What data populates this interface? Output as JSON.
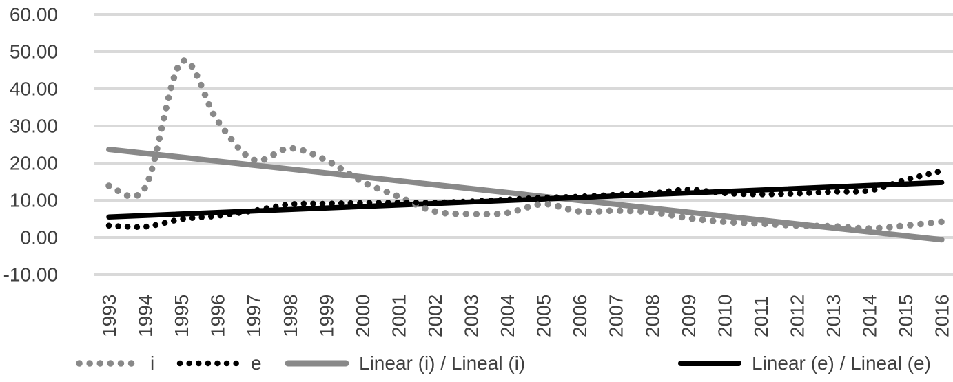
{
  "chart_data": {
    "type": "line",
    "title": "",
    "xlabel": "",
    "ylabel": "",
    "grid": true,
    "gridline_color": "#d9d9d9",
    "axis_text_color": "#404040",
    "y_axis": {
      "min": -10,
      "max": 60,
      "tick_step": 10,
      "tick_labels": [
        "60.00",
        "50.00",
        "40.00",
        "30.00",
        "20.00",
        "10.00",
        "0.00",
        "-10.00"
      ],
      "tick_values": [
        60,
        50,
        40,
        30,
        20,
        10,
        0,
        -10
      ]
    },
    "x": [
      1993,
      1994,
      1995,
      1996,
      1997,
      1998,
      1999,
      2000,
      2001,
      2002,
      2003,
      2004,
      2005,
      2006,
      2007,
      2008,
      2009,
      2010,
      2011,
      2012,
      2013,
      2014,
      2015,
      2016
    ],
    "x_tick_labels": [
      "1993",
      "1994",
      "1995",
      "1996",
      "1997",
      "1998",
      "1999",
      "2000",
      "2001",
      "2002",
      "2003",
      "2004",
      "2005",
      "2006",
      "2007",
      "2008",
      "2009",
      "2010",
      "2011",
      "2012",
      "2013",
      "2014",
      "2015",
      "2016"
    ],
    "series": [
      {
        "name": "i",
        "style": "dotted",
        "color": "#898989",
        "values": [
          13.9,
          13.4,
          47.2,
          31.4,
          20.9,
          24.0,
          20.8,
          15.0,
          11.0,
          7.0,
          6.3,
          6.6,
          9.0,
          7.0,
          7.2,
          6.8,
          5.2,
          4.2,
          3.7,
          3.2,
          3.0,
          2.4,
          3.2,
          4.2
        ]
      },
      {
        "name": "e",
        "style": "dotted",
        "color": "#000000",
        "values": [
          3.2,
          2.9,
          4.9,
          5.8,
          7.2,
          8.9,
          9.1,
          9.3,
          9.4,
          9.4,
          9.7,
          10.2,
          10.7,
          11.0,
          11.5,
          11.9,
          12.9,
          11.9,
          11.6,
          11.8,
          12.3,
          12.6,
          15.5,
          17.9
        ]
      },
      {
        "name": "Linear (i) / Lineal (i)",
        "style": "trendline",
        "color": "#898989",
        "trend_start": 23.7,
        "trend_end": -0.6
      },
      {
        "name": "Linear (e) / Lineal (e)",
        "style": "trendline",
        "color": "#000000",
        "trend_start": 5.5,
        "trend_end": 14.8
      }
    ],
    "legend": {
      "position": "bottom",
      "items": [
        {
          "label": "i",
          "swatch": "dotted-gray"
        },
        {
          "label": "e",
          "swatch": "dotted-black"
        },
        {
          "label": "Linear (i) / Lineal (i)",
          "swatch": "solid-gray"
        },
        {
          "label": "Linear (e) / Lineal (e)",
          "swatch": "solid-black"
        }
      ]
    }
  }
}
